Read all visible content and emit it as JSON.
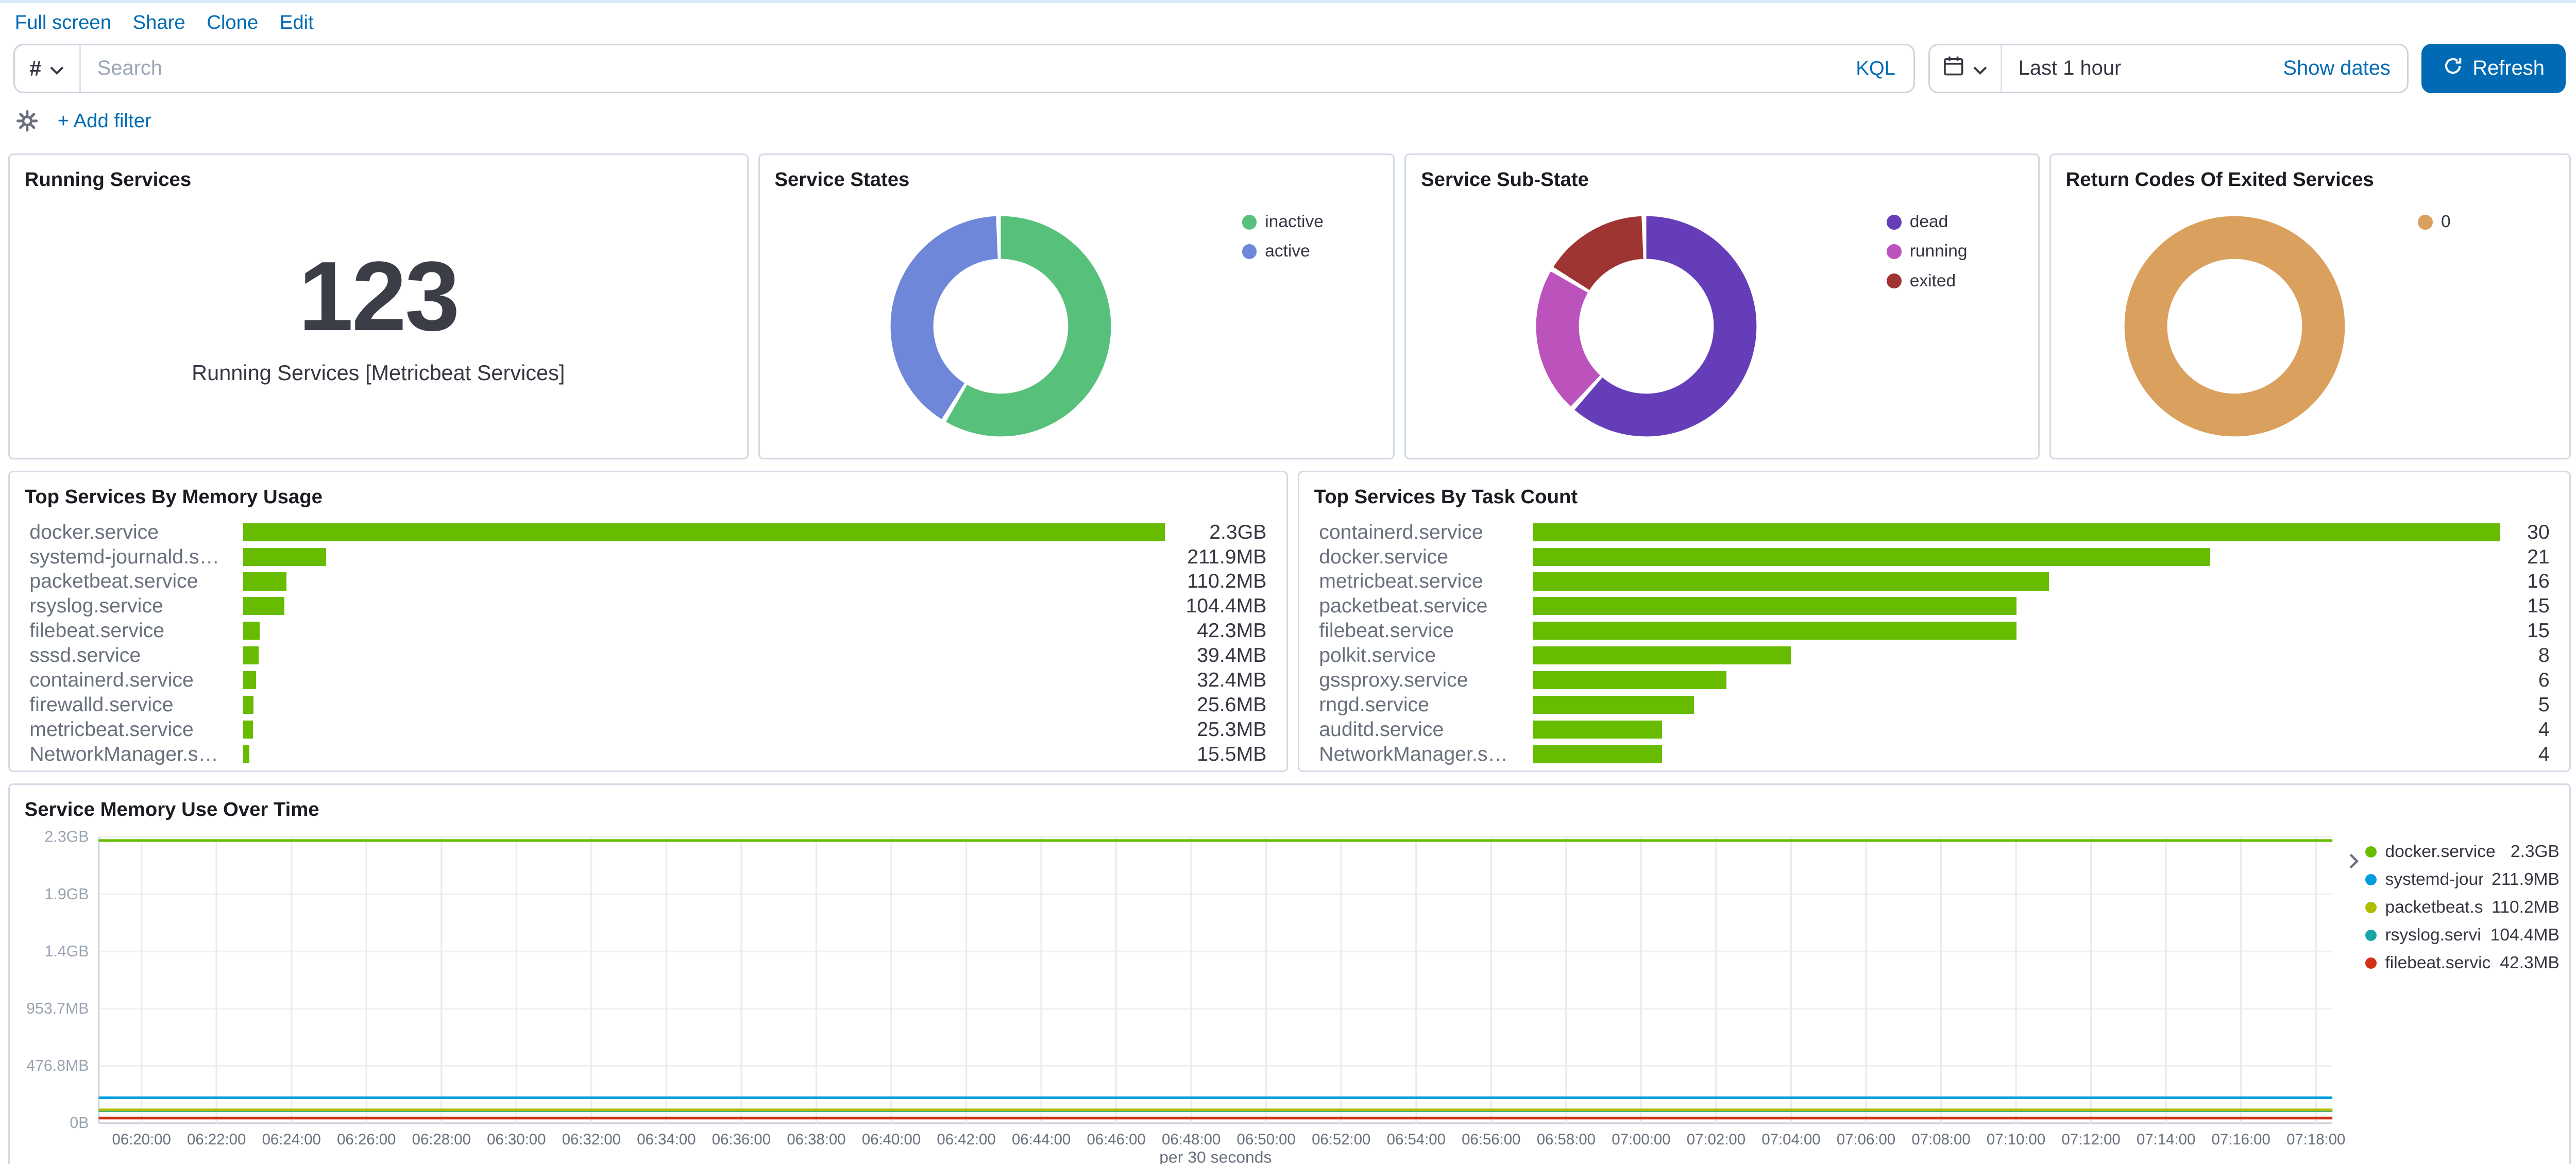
{
  "chrome": {
    "nav_links": [
      "Full screen",
      "Share",
      "Clone",
      "Edit"
    ],
    "query": {
      "filter_symbol": "#",
      "search_placeholder": "Search",
      "kql_label": "KQL",
      "time_range": "Last 1 hour",
      "show_dates_label": "Show dates",
      "refresh_label": "Refresh"
    },
    "filter": {
      "add_filter_label": "+ Add filter"
    }
  },
  "colors": {
    "link_blue": "#006BB4",
    "bar_green": "#68BC00",
    "panel_border": "#d3dae6"
  },
  "panels": {
    "running_services": {
      "title": "Running Services",
      "value": "123",
      "caption": "Running Services [Metricbeat Services]"
    },
    "service_states": {
      "title": "Service States",
      "chart_data": {
        "type": "pie",
        "slices": [
          {
            "label": "inactive",
            "fraction": 0.59,
            "color": "#57c17b"
          },
          {
            "label": "active",
            "fraction": 0.41,
            "color": "#6f87d8"
          }
        ]
      }
    },
    "service_sub_state": {
      "title": "Service Sub-State",
      "chart_data": {
        "type": "pie",
        "slices": [
          {
            "label": "dead",
            "fraction": 0.62,
            "color": "#663db8"
          },
          {
            "label": "running",
            "fraction": 0.22,
            "color": "#bc52bc"
          },
          {
            "label": "exited",
            "fraction": 0.16,
            "color": "#9e3533"
          }
        ]
      }
    },
    "return_codes": {
      "title": "Return Codes Of Exited Services",
      "chart_data": {
        "type": "pie",
        "slices": [
          {
            "label": "0",
            "fraction": 1,
            "color": "#daa05d"
          }
        ]
      }
    },
    "top_memory": {
      "title": "Top Services By Memory Usage",
      "chart_data": {
        "type": "bar",
        "orientation": "horizontal",
        "bar_color": "#68BC00",
        "max_mb": 2355.2,
        "rows": [
          {
            "label": "docker.service",
            "value": "2.3GB",
            "mb": 2355.2
          },
          {
            "label": "systemd-journald.service",
            "value": "211.9MB",
            "mb": 211.9
          },
          {
            "label": "packetbeat.service",
            "value": "110.2MB",
            "mb": 110.2
          },
          {
            "label": "rsyslog.service",
            "value": "104.4MB",
            "mb": 104.4
          },
          {
            "label": "filebeat.service",
            "value": "42.3MB",
            "mb": 42.3
          },
          {
            "label": "sssd.service",
            "value": "39.4MB",
            "mb": 39.4
          },
          {
            "label": "containerd.service",
            "value": "32.4MB",
            "mb": 32.4
          },
          {
            "label": "firewalld.service",
            "value": "25.6MB",
            "mb": 25.6
          },
          {
            "label": "metricbeat.service",
            "value": "25.3MB",
            "mb": 25.3
          },
          {
            "label": "NetworkManager.service",
            "value": "15.5MB",
            "mb": 15.5
          }
        ]
      }
    },
    "top_tasks": {
      "title": "Top Services By Task Count",
      "chart_data": {
        "type": "bar",
        "orientation": "horizontal",
        "bar_color": "#68BC00",
        "max_count": 30,
        "rows": [
          {
            "label": "containerd.service",
            "value": "30",
            "count": 30
          },
          {
            "label": "docker.service",
            "value": "21",
            "count": 21
          },
          {
            "label": "metricbeat.service",
            "value": "16",
            "count": 16
          },
          {
            "label": "packetbeat.service",
            "value": "15",
            "count": 15
          },
          {
            "label": "filebeat.service",
            "value": "15",
            "count": 15
          },
          {
            "label": "polkit.service",
            "value": "8",
            "count": 8
          },
          {
            "label": "gssproxy.service",
            "value": "6",
            "count": 6
          },
          {
            "label": "rngd.service",
            "value": "5",
            "count": 5
          },
          {
            "label": "auditd.service",
            "value": "4",
            "count": 4
          },
          {
            "label": "NetworkManager.service",
            "value": "4",
            "count": 4
          }
        ]
      }
    },
    "memory_over_time": {
      "title": "Service Memory Use Over Time",
      "chart_data": {
        "type": "line",
        "x_label": "per 30 seconds",
        "y_max_mb": 2384.2,
        "y_ticks": [
          {
            "mb": 2384.2,
            "label": "2.3GB"
          },
          {
            "mb": 1907.3,
            "label": "1.9GB"
          },
          {
            "mb": 1430.5,
            "label": "1.4GB"
          },
          {
            "mb": 953.7,
            "label": "953.7MB"
          },
          {
            "mb": 476.8,
            "label": "476.8MB"
          },
          {
            "mb": 0,
            "label": "0B"
          }
        ],
        "x_ticks": [
          "06:20:00",
          "06:22:00",
          "06:24:00",
          "06:26:00",
          "06:28:00",
          "06:30:00",
          "06:32:00",
          "06:34:00",
          "06:36:00",
          "06:38:00",
          "06:40:00",
          "06:42:00",
          "06:44:00",
          "06:46:00",
          "06:48:00",
          "06:50:00",
          "06:52:00",
          "06:54:00",
          "06:56:00",
          "06:58:00",
          "07:00:00",
          "07:02:00",
          "07:04:00",
          "07:06:00",
          "07:08:00",
          "07:10:00",
          "07:12:00",
          "07:14:00",
          "07:16:00",
          "07:18:00"
        ],
        "series": [
          {
            "name": "docker.service",
            "legend_label": "docker.service",
            "value_label": "2.3GB",
            "mb": 2355.2,
            "color": "#68BC00"
          },
          {
            "name": "systemd-journald.service",
            "legend_label": "systemd-jour...",
            "value_label": "211.9MB",
            "mb": 211.9,
            "color": "#009CE0"
          },
          {
            "name": "packetbeat.service",
            "legend_label": "packetbeat.s...",
            "value_label": "110.2MB",
            "mb": 110.2,
            "color": "#B0BC00"
          },
          {
            "name": "rsyslog.service",
            "legend_label": "rsyslog.service",
            "value_label": "104.4MB",
            "mb": 104.4,
            "color": "#16A5A5"
          },
          {
            "name": "filebeat.service",
            "legend_label": "filebeat.service",
            "value_label": "42.3MB",
            "mb": 42.3,
            "color": "#D33115"
          }
        ]
      }
    }
  }
}
